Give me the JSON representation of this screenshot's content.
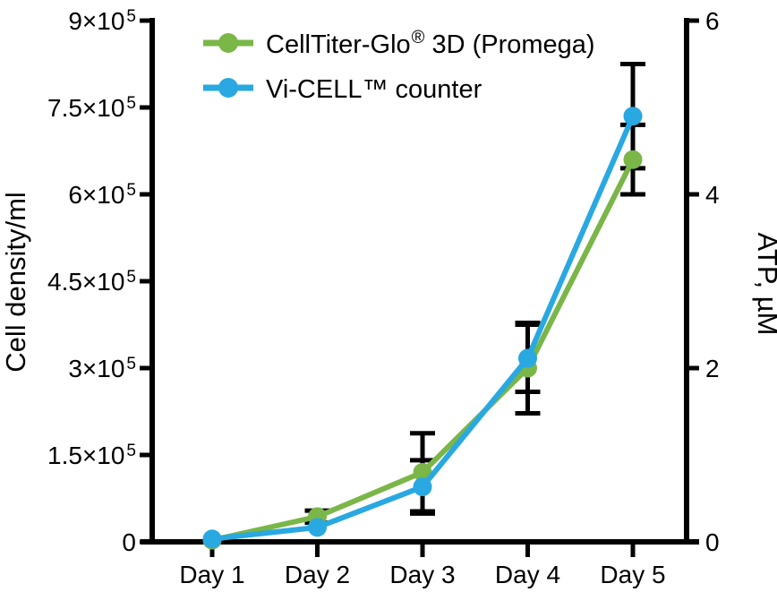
{
  "chart": {
    "left_axis": {
      "label": "Cell density/ml",
      "ticks": [
        {
          "v": 0,
          "base": "0",
          "exp": null
        },
        {
          "v": 150000,
          "base": "1.5×10",
          "exp": "5"
        },
        {
          "v": 300000,
          "base": "3×10",
          "exp": "5"
        },
        {
          "v": 450000,
          "base": "4.5×10",
          "exp": "5"
        },
        {
          "v": 600000,
          "base": "6×10",
          "exp": "5"
        },
        {
          "v": 750000,
          "base": "7.5×10",
          "exp": "5"
        },
        {
          "v": 900000,
          "base": "9×10",
          "exp": "5"
        }
      ]
    },
    "right_axis": {
      "label": "ATP, µM",
      "ticks": [
        {
          "v": 0,
          "label": "0"
        },
        {
          "v": 2,
          "label": "2"
        },
        {
          "v": 4,
          "label": "4"
        },
        {
          "v": 6,
          "label": "6"
        }
      ]
    },
    "x_axis": {
      "ticks": [
        "Day 1",
        "Day 2",
        "Day 3",
        "Day 4",
        "Day 5"
      ]
    }
  },
  "legend": {
    "items": [
      {
        "pre": "CellTiter-Glo",
        "sup": "®",
        "post": " 3D (Promega)",
        "full": "CellTiter-Glo® 3D (Promega)"
      },
      {
        "text": "Vi-CELL™ counter",
        "full": "Vi-CELL™ counter"
      }
    ]
  },
  "colors": {
    "celltiter_green": "#7ab648",
    "vicell_blue": "#29a8e1",
    "axis_black": "#000000"
  },
  "chart_data": {
    "type": "line",
    "title": "",
    "categories": [
      "Day 1",
      "Day 2",
      "Day 3",
      "Day 4",
      "Day 5"
    ],
    "left_ylabel": "Cell density/ml",
    "right_ylabel": "ATP, µM",
    "xlabel": "",
    "left_ylim": [
      0,
      900000
    ],
    "right_ylim": [
      0,
      6
    ],
    "grid": false,
    "legend_position": "top-inside",
    "series": [
      {
        "name": "CellTiter-Glo® 3D (Promega)",
        "axis": "right",
        "unit": "µM ATP",
        "color": "#7ab648",
        "values": [
          0.02,
          0.29,
          0.8,
          2.0,
          4.4
        ],
        "errors": [
          0,
          0.07,
          0.45,
          0.52,
          0.4
        ]
      },
      {
        "name": "Vi-CELL™ counter",
        "axis": "left",
        "unit": "cells/ml",
        "color": "#29a8e1",
        "values": [
          5000,
          25000,
          95000,
          317000,
          735000
        ],
        "errors": [
          0,
          0,
          46000,
          58000,
          90000
        ]
      }
    ]
  }
}
